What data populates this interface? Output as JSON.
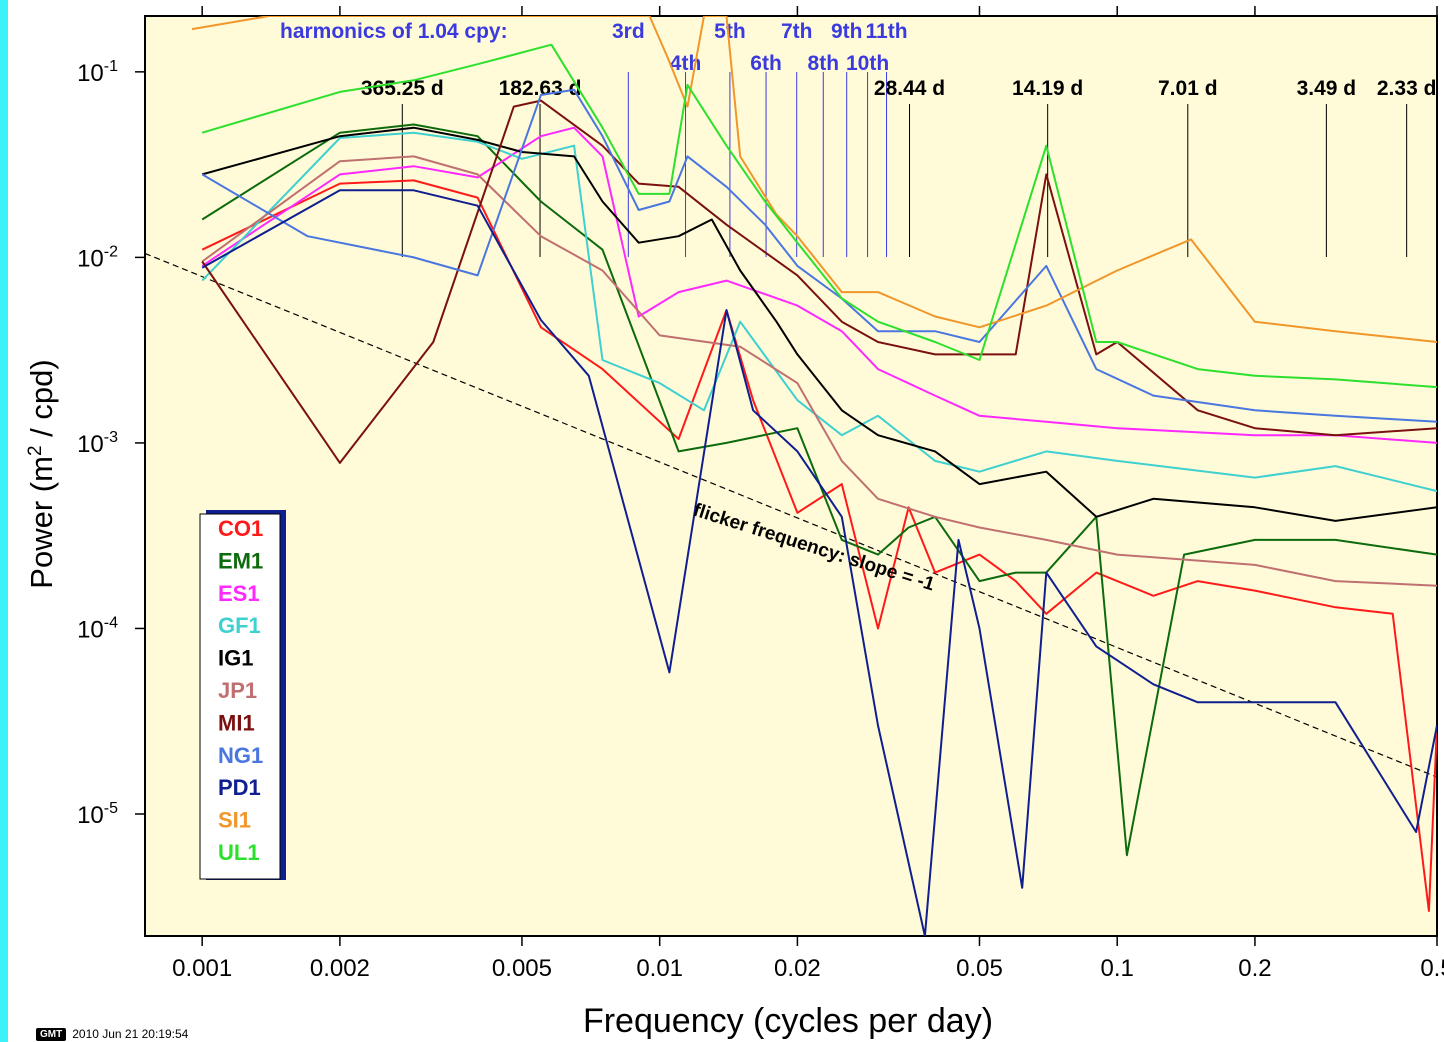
{
  "colors": {
    "panel_background": "#fffbd8",
    "page_edge_strip": "#39f3f8",
    "harmonic_marker": "#3a3adf",
    "period_marker": "#000000"
  },
  "chart_data": {
    "type": "line",
    "title": "",
    "xlabel": "Frequency (cycles per day)",
    "ylabel": "Power (m² / cpd)",
    "x_scale": "log",
    "y_scale": "log",
    "xlim": [
      0.00075,
      0.5
    ],
    "ylim": [
      2.2e-06,
      0.2
    ],
    "grid": false,
    "legend_position": "bottom-left",
    "x_ticks": [
      {
        "v": 0.001,
        "label": "0.001"
      },
      {
        "v": 0.002,
        "label": "0.002"
      },
      {
        "v": 0.005,
        "label": "0.005"
      },
      {
        "v": 0.01,
        "label": "0.01"
      },
      {
        "v": 0.02,
        "label": "0.02"
      },
      {
        "v": 0.05,
        "label": "0.05"
      },
      {
        "v": 0.1,
        "label": "0.1"
      },
      {
        "v": 0.2,
        "label": "0.2"
      },
      {
        "v": 0.5,
        "label": "0.5"
      }
    ],
    "y_ticks": [
      {
        "v": 0.1,
        "base": "10",
        "exp": "-1"
      },
      {
        "v": 0.01,
        "base": "10",
        "exp": "-2"
      },
      {
        "v": 0.001,
        "base": "10",
        "exp": "-3"
      },
      {
        "v": 0.0001,
        "base": "10",
        "exp": "-4"
      },
      {
        "v": 1e-05,
        "base": "10",
        "exp": "-5"
      }
    ],
    "harmonics_title": "harmonics of 1.04 cpy:",
    "harmonics": [
      {
        "label": "3rd",
        "f": 0.00854
      },
      {
        "label": "4th",
        "f": 0.01139
      },
      {
        "label": "5th",
        "f": 0.01424
      },
      {
        "label": "6th",
        "f": 0.01708
      },
      {
        "label": "7th",
        "f": 0.01993
      },
      {
        "label": "8th",
        "f": 0.02278
      },
      {
        "label": "9th",
        "f": 0.02563
      },
      {
        "label": "10th",
        "f": 0.02847
      },
      {
        "label": "11th",
        "f": 0.03132
      }
    ],
    "periods": [
      {
        "label": "365.25 d",
        "f": 0.002738
      },
      {
        "label": "182.63 d",
        "f": 0.005476
      },
      {
        "label": "28.44 d",
        "f": 0.03516
      },
      {
        "label": "14.19 d",
        "f": 0.07047
      },
      {
        "label": "7.01 d",
        "f": 0.14265
      },
      {
        "label": "3.49 d",
        "f": 0.28653
      },
      {
        "label": "2.33 d",
        "f": 0.42918
      }
    ],
    "reference_line": {
      "label": "flicker frequency: slope = -1",
      "points": [
        [
          0.00075,
          0.0105
        ],
        [
          0.5,
          1.58e-05
        ]
      ]
    },
    "series": [
      {
        "name": "CO1",
        "color": "#ff1a1a",
        "points": [
          [
            0.001,
            0.011
          ],
          [
            0.002,
            0.025
          ],
          [
            0.0029,
            0.026
          ],
          [
            0.004,
            0.021
          ],
          [
            0.0055,
            0.0042
          ],
          [
            0.0075,
            0.0025
          ],
          [
            0.011,
            0.00105
          ],
          [
            0.014,
            0.0052
          ],
          [
            0.016,
            0.0017
          ],
          [
            0.02,
            0.00042
          ],
          [
            0.025,
            0.0006
          ],
          [
            0.03,
            0.0001
          ],
          [
            0.035,
            0.00045
          ],
          [
            0.04,
            0.0002
          ],
          [
            0.05,
            0.00025
          ],
          [
            0.06,
            0.00018
          ],
          [
            0.07,
            0.00012
          ],
          [
            0.09,
            0.0002
          ],
          [
            0.12,
            0.00015
          ],
          [
            0.15,
            0.00018
          ],
          [
            0.2,
            0.00016
          ],
          [
            0.3,
            0.00013
          ],
          [
            0.4,
            0.00012
          ],
          [
            0.48,
            3e-06
          ],
          [
            0.5,
            3e-05
          ]
        ]
      },
      {
        "name": "EM1",
        "color": "#0d6b0d",
        "points": [
          [
            0.001,
            0.016
          ],
          [
            0.002,
            0.047
          ],
          [
            0.0029,
            0.052
          ],
          [
            0.004,
            0.045
          ],
          [
            0.0055,
            0.02
          ],
          [
            0.0075,
            0.011
          ],
          [
            0.011,
            0.0009
          ],
          [
            0.014,
            0.001
          ],
          [
            0.02,
            0.0012
          ],
          [
            0.025,
            0.0003
          ],
          [
            0.03,
            0.00025
          ],
          [
            0.035,
            0.00035
          ],
          [
            0.04,
            0.0004
          ],
          [
            0.05,
            0.00018
          ],
          [
            0.06,
            0.0002
          ],
          [
            0.07,
            0.0002
          ],
          [
            0.09,
            0.0004
          ],
          [
            0.105,
            6e-06
          ],
          [
            0.14,
            0.00025
          ],
          [
            0.2,
            0.0003
          ],
          [
            0.3,
            0.0003
          ],
          [
            0.5,
            0.00025
          ]
        ]
      },
      {
        "name": "ES1",
        "color": "#ff28ff",
        "points": [
          [
            0.001,
            0.009
          ],
          [
            0.002,
            0.028
          ],
          [
            0.0029,
            0.031
          ],
          [
            0.004,
            0.027
          ],
          [
            0.0055,
            0.045
          ],
          [
            0.0065,
            0.05
          ],
          [
            0.0075,
            0.035
          ],
          [
            0.009,
            0.0048
          ],
          [
            0.011,
            0.0065
          ],
          [
            0.014,
            0.0075
          ],
          [
            0.02,
            0.0055
          ],
          [
            0.025,
            0.004
          ],
          [
            0.03,
            0.0025
          ],
          [
            0.04,
            0.0018
          ],
          [
            0.05,
            0.0014
          ],
          [
            0.07,
            0.0013
          ],
          [
            0.1,
            0.0012
          ],
          [
            0.2,
            0.0011
          ],
          [
            0.3,
            0.0011
          ],
          [
            0.5,
            0.001
          ]
        ]
      },
      {
        "name": "GF1",
        "color": "#3fd0d0",
        "points": [
          [
            0.001,
            0.0075
          ],
          [
            0.002,
            0.044
          ],
          [
            0.0029,
            0.047
          ],
          [
            0.004,
            0.042
          ],
          [
            0.005,
            0.034
          ],
          [
            0.0065,
            0.04
          ],
          [
            0.0075,
            0.0028
          ],
          [
            0.01,
            0.0021
          ],
          [
            0.0125,
            0.0015
          ],
          [
            0.015,
            0.0045
          ],
          [
            0.02,
            0.0017
          ],
          [
            0.025,
            0.0011
          ],
          [
            0.03,
            0.0014
          ],
          [
            0.04,
            0.0008
          ],
          [
            0.05,
            0.0007
          ],
          [
            0.07,
            0.0009
          ],
          [
            0.1,
            0.0008
          ],
          [
            0.2,
            0.00065
          ],
          [
            0.3,
            0.00075
          ],
          [
            0.5,
            0.00055
          ]
        ]
      },
      {
        "name": "IG1",
        "color": "#000000",
        "points": [
          [
            0.001,
            0.028
          ],
          [
            0.002,
            0.045
          ],
          [
            0.0029,
            0.05
          ],
          [
            0.004,
            0.043
          ],
          [
            0.005,
            0.037
          ],
          [
            0.0065,
            0.035
          ],
          [
            0.0075,
            0.02
          ],
          [
            0.009,
            0.012
          ],
          [
            0.011,
            0.013
          ],
          [
            0.013,
            0.016
          ],
          [
            0.015,
            0.0085
          ],
          [
            0.018,
            0.0045
          ],
          [
            0.02,
            0.003
          ],
          [
            0.025,
            0.0015
          ],
          [
            0.03,
            0.0011
          ],
          [
            0.04,
            0.0009
          ],
          [
            0.05,
            0.0006
          ],
          [
            0.07,
            0.0007
          ],
          [
            0.09,
            0.0004
          ],
          [
            0.12,
            0.0005
          ],
          [
            0.2,
            0.00045
          ],
          [
            0.3,
            0.00038
          ],
          [
            0.5,
            0.00045
          ]
        ]
      },
      {
        "name": "JP1",
        "color": "#c07070",
        "points": [
          [
            0.001,
            0.0095
          ],
          [
            0.002,
            0.033
          ],
          [
            0.0029,
            0.035
          ],
          [
            0.004,
            0.028
          ],
          [
            0.0055,
            0.013
          ],
          [
            0.0075,
            0.0085
          ],
          [
            0.01,
            0.0038
          ],
          [
            0.015,
            0.0033
          ],
          [
            0.02,
            0.0021
          ],
          [
            0.025,
            0.0008
          ],
          [
            0.03,
            0.0005
          ],
          [
            0.04,
            0.0004
          ],
          [
            0.05,
            0.00035
          ],
          [
            0.07,
            0.0003
          ],
          [
            0.1,
            0.00025
          ],
          [
            0.2,
            0.00022
          ],
          [
            0.3,
            0.00018
          ],
          [
            0.5,
            0.00017
          ]
        ]
      },
      {
        "name": "MI1",
        "color": "#7a1010",
        "points": [
          [
            0.001,
            0.0095
          ],
          [
            0.002,
            0.00078
          ],
          [
            0.0032,
            0.0035
          ],
          [
            0.0048,
            0.065
          ],
          [
            0.0055,
            0.07
          ],
          [
            0.0075,
            0.04
          ],
          [
            0.009,
            0.025
          ],
          [
            0.011,
            0.024
          ],
          [
            0.014,
            0.015
          ],
          [
            0.02,
            0.008
          ],
          [
            0.025,
            0.0045
          ],
          [
            0.03,
            0.0035
          ],
          [
            0.04,
            0.003
          ],
          [
            0.05,
            0.003
          ],
          [
            0.06,
            0.003
          ],
          [
            0.07,
            0.028
          ],
          [
            0.09,
            0.003
          ],
          [
            0.1,
            0.0035
          ],
          [
            0.15,
            0.0015
          ],
          [
            0.2,
            0.0012
          ],
          [
            0.3,
            0.0011
          ],
          [
            0.5,
            0.0012
          ]
        ]
      },
      {
        "name": "NG1",
        "color": "#4a76e0",
        "points": [
          [
            0.001,
            0.028
          ],
          [
            0.0017,
            0.013
          ],
          [
            0.0029,
            0.01
          ],
          [
            0.004,
            0.008
          ],
          [
            0.0055,
            0.075
          ],
          [
            0.0065,
            0.08
          ],
          [
            0.0075,
            0.045
          ],
          [
            0.009,
            0.018
          ],
          [
            0.0105,
            0.02
          ],
          [
            0.0115,
            0.035
          ],
          [
            0.014,
            0.024
          ],
          [
            0.017,
            0.015
          ],
          [
            0.02,
            0.009
          ],
          [
            0.025,
            0.006
          ],
          [
            0.03,
            0.004
          ],
          [
            0.04,
            0.004
          ],
          [
            0.05,
            0.0035
          ],
          [
            0.07,
            0.009
          ],
          [
            0.09,
            0.0025
          ],
          [
            0.12,
            0.0018
          ],
          [
            0.2,
            0.0015
          ],
          [
            0.3,
            0.0014
          ],
          [
            0.5,
            0.0013
          ]
        ]
      },
      {
        "name": "PD1",
        "color": "#0f1f8f",
        "points": [
          [
            0.001,
            0.0088
          ],
          [
            0.002,
            0.023
          ],
          [
            0.0029,
            0.023
          ],
          [
            0.004,
            0.019
          ],
          [
            0.0055,
            0.0046
          ],
          [
            0.007,
            0.0023
          ],
          [
            0.0105,
            5.8e-05
          ],
          [
            0.014,
            0.0052
          ],
          [
            0.016,
            0.0015
          ],
          [
            0.02,
            0.0009
          ],
          [
            0.025,
            0.0004
          ],
          [
            0.03,
            3e-05
          ],
          [
            0.038,
            2.2e-06
          ],
          [
            0.045,
            0.0003
          ],
          [
            0.05,
            0.0001
          ],
          [
            0.062,
            4e-06
          ],
          [
            0.07,
            0.0002
          ],
          [
            0.09,
            8e-05
          ],
          [
            0.12,
            5e-05
          ],
          [
            0.15,
            4e-05
          ],
          [
            0.2,
            4e-05
          ],
          [
            0.3,
            4e-05
          ],
          [
            0.45,
            8e-06
          ],
          [
            0.5,
            3e-05
          ]
        ]
      },
      {
        "name": "SI1",
        "color": "#f0962a",
        "points": [
          [
            0.00095,
            0.17
          ],
          [
            0.0014,
            0.2
          ],
          [
            0.0095,
            0.2
          ],
          [
            0.0104,
            0.12
          ],
          [
            0.0115,
            0.065
          ],
          [
            0.0125,
            0.2
          ],
          [
            0.014,
            0.2
          ],
          [
            0.015,
            0.035
          ],
          [
            0.018,
            0.017
          ],
          [
            0.02,
            0.013
          ],
          [
            0.025,
            0.0065
          ],
          [
            0.03,
            0.0065
          ],
          [
            0.04,
            0.0048
          ],
          [
            0.05,
            0.0042
          ],
          [
            0.07,
            0.0055
          ],
          [
            0.1,
            0.0085
          ],
          [
            0.145,
            0.0125
          ],
          [
            0.2,
            0.0045
          ],
          [
            0.3,
            0.004
          ],
          [
            0.5,
            0.0035
          ]
        ]
      },
      {
        "name": "UL1",
        "color": "#2de02d",
        "points": [
          [
            0.001,
            0.047
          ],
          [
            0.002,
            0.078
          ],
          [
            0.0029,
            0.09
          ],
          [
            0.004,
            0.11
          ],
          [
            0.0058,
            0.14
          ],
          [
            0.0075,
            0.05
          ],
          [
            0.009,
            0.022
          ],
          [
            0.0105,
            0.022
          ],
          [
            0.0115,
            0.085
          ],
          [
            0.014,
            0.04
          ],
          [
            0.017,
            0.02
          ],
          [
            0.02,
            0.012
          ],
          [
            0.025,
            0.006
          ],
          [
            0.03,
            0.0045
          ],
          [
            0.04,
            0.0035
          ],
          [
            0.05,
            0.0028
          ],
          [
            0.07,
            0.04
          ],
          [
            0.09,
            0.0035
          ],
          [
            0.1,
            0.0035
          ],
          [
            0.15,
            0.0025
          ],
          [
            0.2,
            0.0023
          ],
          [
            0.3,
            0.0022
          ],
          [
            0.5,
            0.002
          ]
        ]
      }
    ]
  },
  "footer": {
    "gmt_logo": "GMT",
    "timestamp": "2010 Jun 21 20:19:54"
  }
}
